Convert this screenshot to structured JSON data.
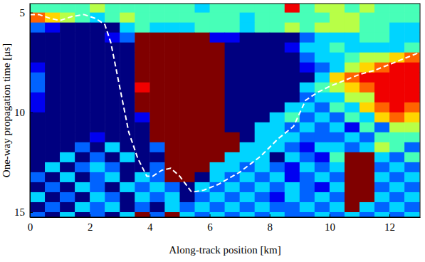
{
  "chart_data": {
    "type": "heatmap",
    "x_label": "Along-track position [km]",
    "y_label": "One-way propagation time [μs]",
    "xlim": [
      0,
      13.02
    ],
    "ylim": [
      15.25,
      4.55
    ],
    "xticks": [
      0,
      2,
      4,
      6,
      8,
      10,
      12
    ],
    "yticks": [
      5,
      10,
      15
    ],
    "cells": {
      "x": [
        0.25,
        0.75,
        1.25,
        1.75,
        2.25,
        2.75,
        3.25,
        3.75,
        4.25,
        4.75,
        5.25,
        5.75,
        6.25,
        6.75,
        7.25,
        7.75,
        8.25,
        8.75,
        9.25,
        9.75,
        10.25,
        10.75,
        11.25,
        11.75,
        12.25,
        12.75
      ],
      "y": [
        4.75,
        5.25,
        5.75,
        6.25,
        6.75,
        7.25,
        7.75,
        8.25,
        8.75,
        9.25,
        9.75,
        10.25,
        10.75,
        11.25,
        11.75,
        12.25,
        12.75,
        13.25,
        13.75,
        14.25,
        14.75,
        15.25
      ],
      "values": [
        [
          4,
          4,
          4,
          4,
          5,
          4,
          4,
          4,
          4,
          4,
          4,
          3,
          4,
          4,
          4,
          4,
          4,
          8,
          4,
          5,
          5,
          4,
          5,
          4,
          4,
          4
        ],
        [
          7,
          6,
          5,
          4,
          3,
          4,
          5,
          4,
          4,
          4,
          4,
          4,
          4,
          4,
          3,
          4,
          4,
          4,
          4,
          4,
          5,
          5,
          4,
          4,
          4,
          4
        ],
        [
          2,
          1,
          0,
          0,
          0,
          0,
          3,
          4,
          3,
          3,
          3,
          4,
          4,
          4,
          3,
          4,
          4,
          5,
          4,
          5,
          5,
          5,
          4,
          4,
          3,
          3
        ],
        [
          0,
          0,
          0,
          0,
          0,
          1,
          2,
          9,
          9,
          9,
          9,
          9,
          1,
          1,
          0,
          0,
          0,
          0,
          2,
          3,
          3,
          3,
          4,
          4,
          3,
          3
        ],
        [
          0,
          0,
          0,
          0,
          0,
          0,
          0,
          9,
          9,
          9,
          9,
          9,
          9,
          0,
          0,
          0,
          0,
          1,
          3,
          3,
          4,
          3,
          3,
          3,
          3,
          4
        ],
        [
          0,
          0,
          0,
          0,
          0,
          0,
          0,
          9,
          9,
          9,
          9,
          9,
          9,
          0,
          0,
          0,
          0,
          0,
          2,
          3,
          3,
          4,
          5,
          5,
          6,
          7
        ],
        [
          1,
          0,
          0,
          0,
          0,
          0,
          0,
          9,
          9,
          9,
          9,
          9,
          9,
          0,
          0,
          0,
          0,
          0,
          1,
          2,
          3,
          5,
          6,
          7,
          8,
          8
        ],
        [
          2,
          0,
          0,
          0,
          0,
          0,
          0,
          9,
          9,
          9,
          9,
          9,
          9,
          0,
          0,
          0,
          0,
          0,
          0,
          3,
          6,
          7,
          8,
          8,
          8,
          8
        ],
        [
          2,
          0,
          0,
          0,
          0,
          0,
          0,
          8,
          9,
          9,
          9,
          9,
          9,
          0,
          0,
          0,
          0,
          0,
          3,
          4,
          5,
          6,
          7,
          8,
          8,
          8
        ],
        [
          1,
          0,
          0,
          0,
          0,
          0,
          0,
          9,
          9,
          9,
          9,
          9,
          9,
          0,
          0,
          0,
          0,
          0,
          2,
          3,
          3,
          5,
          5,
          8,
          8,
          8
        ],
        [
          1,
          0,
          0,
          0,
          0,
          0,
          0,
          9,
          9,
          9,
          9,
          9,
          9,
          0,
          0,
          0,
          0,
          3,
          3,
          2,
          4,
          3,
          6,
          7,
          8,
          7
        ],
        [
          0,
          0,
          0,
          0,
          0,
          0,
          0,
          1,
          9,
          9,
          9,
          9,
          9,
          0,
          0,
          0,
          3,
          4,
          2,
          3,
          2,
          4,
          3,
          6,
          7,
          6
        ],
        [
          0,
          0,
          0,
          0,
          0,
          0,
          0,
          0,
          9,
          9,
          9,
          9,
          9,
          0,
          0,
          3,
          3,
          2,
          3,
          2,
          3,
          1,
          4,
          2,
          5,
          5
        ],
        [
          0,
          0,
          0,
          0,
          1,
          0,
          0,
          0,
          9,
          9,
          9,
          9,
          9,
          9,
          0,
          3,
          3,
          3,
          2,
          2,
          2,
          3,
          2,
          4,
          4,
          4
        ],
        [
          0,
          0,
          0,
          2,
          0,
          3,
          0,
          0,
          2,
          9,
          9,
          9,
          9,
          9,
          3,
          3,
          3,
          2,
          1,
          3,
          3,
          2,
          3,
          5,
          4,
          2
        ],
        [
          0,
          0,
          3,
          0,
          2,
          0,
          3,
          0,
          0,
          9,
          9,
          9,
          9,
          3,
          3,
          3,
          0,
          3,
          2,
          1,
          4,
          9,
          9,
          3,
          2,
          4
        ],
        [
          0,
          3,
          0,
          2,
          3,
          2,
          0,
          0,
          2,
          9,
          9,
          9,
          3,
          3,
          2,
          3,
          2,
          1,
          3,
          2,
          3,
          9,
          9,
          2,
          3,
          2
        ],
        [
          2,
          0,
          3,
          0,
          2,
          3,
          0,
          3,
          2,
          9,
          9,
          0,
          3,
          2,
          3,
          2,
          3,
          1,
          2,
          3,
          2,
          9,
          9,
          3,
          2,
          3
        ],
        [
          0,
          2,
          0,
          3,
          2,
          0,
          3,
          2,
          3,
          2,
          0,
          3,
          2,
          3,
          2,
          3,
          2,
          3,
          2,
          1,
          3,
          9,
          9,
          2,
          3,
          2
        ],
        [
          3,
          0,
          2,
          0,
          3,
          2,
          0,
          3,
          2,
          3,
          0,
          2,
          3,
          2,
          3,
          2,
          1,
          3,
          2,
          3,
          2,
          9,
          9,
          3,
          2,
          3
        ],
        [
          0,
          2,
          0,
          3,
          2,
          3,
          0,
          2,
          0,
          3,
          2,
          3,
          2,
          3,
          2,
          3,
          2,
          2,
          3,
          2,
          3,
          9,
          3,
          2,
          3,
          2
        ],
        [
          2,
          0,
          3,
          0,
          2,
          0,
          3,
          9,
          2,
          9,
          3,
          2,
          3,
          2,
          3,
          2,
          3,
          2,
          2,
          3,
          2,
          3,
          2,
          3,
          2,
          3
        ]
      ]
    },
    "series": [
      {
        "type": "line",
        "color": "#ffffff",
        "line_style": "dashed",
        "x": [
          0,
          0.3,
          0.7,
          1.0,
          1.4,
          1.8,
          2.2,
          2.5,
          2.7,
          2.9,
          3.1,
          3.3,
          3.6,
          3.9,
          4.1,
          4.4,
          4.7,
          5.0,
          5.4,
          5.8,
          6.3,
          7.0,
          7.7,
          8.3,
          8.8,
          9.2,
          9.6,
          10.0,
          10.5,
          11.0,
          11.5,
          12.0,
          12.5,
          13.0
        ],
        "y": [
          5.1,
          5.1,
          5.3,
          5.4,
          5.2,
          5.1,
          5.3,
          5.6,
          6.5,
          8.0,
          9.5,
          11.0,
          12.3,
          13.2,
          13.2,
          12.9,
          12.8,
          13.2,
          14.0,
          13.9,
          13.6,
          13.0,
          12.2,
          11.3,
          10.7,
          9.4,
          9.0,
          8.7,
          8.4,
          8.1,
          7.9,
          7.6,
          7.3,
          7.0
        ]
      }
    ]
  }
}
